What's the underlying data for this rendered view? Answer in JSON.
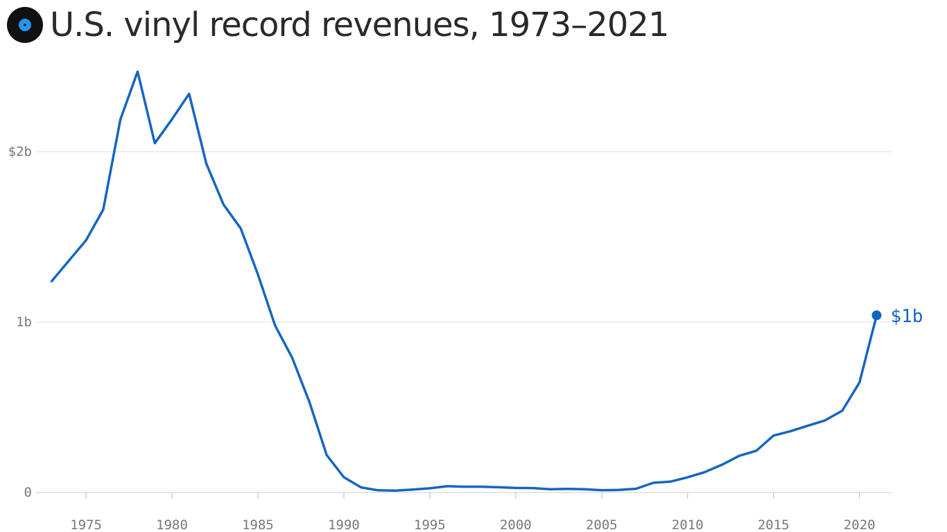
{
  "header": {
    "title": "U.S. vinyl record revenues, 1973–2021",
    "icon": "vinyl-record-icon"
  },
  "colors": {
    "line": "#1565c0",
    "icon_center": "#2196f3",
    "grid": "#dddddd",
    "axis_text": "#777777",
    "title_text": "#2a2a2a"
  },
  "chart_data": {
    "type": "line",
    "title": "U.S. vinyl record revenues, 1973–2021",
    "xlabel": "",
    "ylabel": "",
    "xlim": [
      1973,
      2021
    ],
    "ylim": [
      0,
      2.5
    ],
    "grid": "horizontal",
    "y_ticks": [
      {
        "value": 0,
        "label": "0"
      },
      {
        "value": 1,
        "label": "1b"
      },
      {
        "value": 2,
        "label": "$2b"
      }
    ],
    "x_ticks": [
      {
        "value": 1975,
        "label": "1975"
      },
      {
        "value": 1980,
        "label": "1980"
      },
      {
        "value": 1985,
        "label": "1985"
      },
      {
        "value": 1990,
        "label": "1990"
      },
      {
        "value": 1995,
        "label": "1995"
      },
      {
        "value": 2000,
        "label": "2000"
      },
      {
        "value": 2005,
        "label": "2005"
      },
      {
        "value": 2010,
        "label": "2010"
      },
      {
        "value": 2015,
        "label": "2015"
      },
      {
        "value": 2020,
        "label": "2020"
      }
    ],
    "series": [
      {
        "x": [
          1973,
          1974,
          1975,
          1976,
          1977,
          1978,
          1979,
          1980,
          1981,
          1982,
          1983,
          1984,
          1985,
          1986,
          1987,
          1988,
          1989,
          1990,
          1991,
          1992,
          1993,
          1994,
          1995,
          1996,
          1997,
          1998,
          1999,
          2000,
          2001,
          2002,
          2003,
          2004,
          2005,
          2006,
          2007,
          2008,
          2009,
          2010,
          2011,
          2012,
          2013,
          2014,
          2015,
          2016,
          2017,
          2018,
          2019,
          2020,
          2021
        ],
        "values": [
          1.24,
          1.36,
          1.48,
          1.66,
          2.19,
          2.47,
          2.05,
          2.19,
          2.34,
          1.93,
          1.69,
          1.55,
          1.28,
          0.98,
          0.79,
          0.53,
          0.22,
          0.09,
          0.03,
          0.013,
          0.011,
          0.017,
          0.025,
          0.037,
          0.034,
          0.034,
          0.031,
          0.027,
          0.026,
          0.019,
          0.021,
          0.019,
          0.014,
          0.015,
          0.022,
          0.057,
          0.064,
          0.089,
          0.12,
          0.163,
          0.215,
          0.245,
          0.334,
          0.36,
          0.392,
          0.423,
          0.48,
          0.645,
          1.04
        ]
      }
    ],
    "end_label": "$1b"
  }
}
